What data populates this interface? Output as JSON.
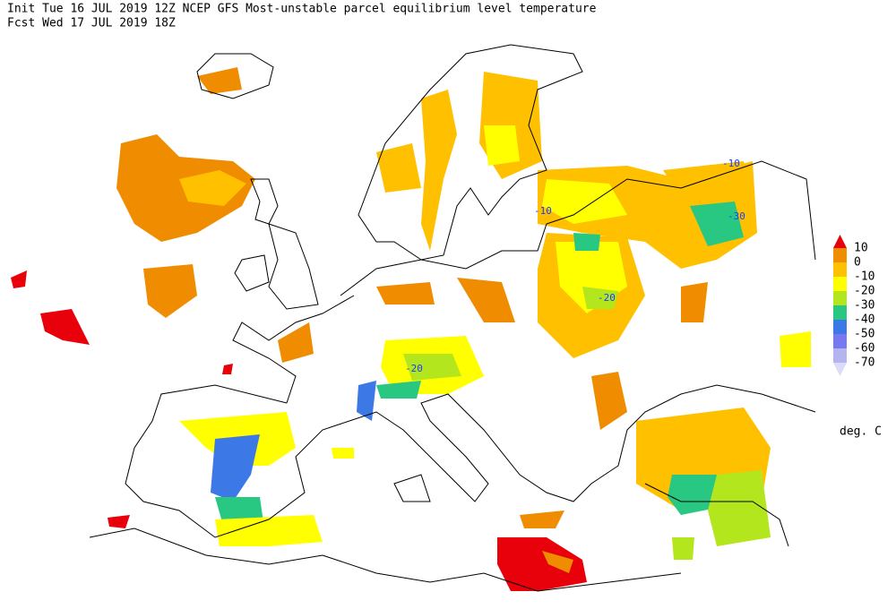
{
  "header": {
    "line1": "Init  Tue 16 JUL 2019 12Z  NCEP GFS Most-unstable parcel equilibrium level temperature",
    "line2": "Fcst Wed 17 JUL 2019 18Z"
  },
  "legend": {
    "levels": [
      "10",
      "0",
      "-10",
      "-20",
      "-30",
      "-40",
      "-50",
      "-60",
      "-70"
    ],
    "units": "deg. C"
  },
  "map": {
    "labels": [
      "-10",
      "-10",
      "-30",
      "-20",
      "-20"
    ]
  }
}
